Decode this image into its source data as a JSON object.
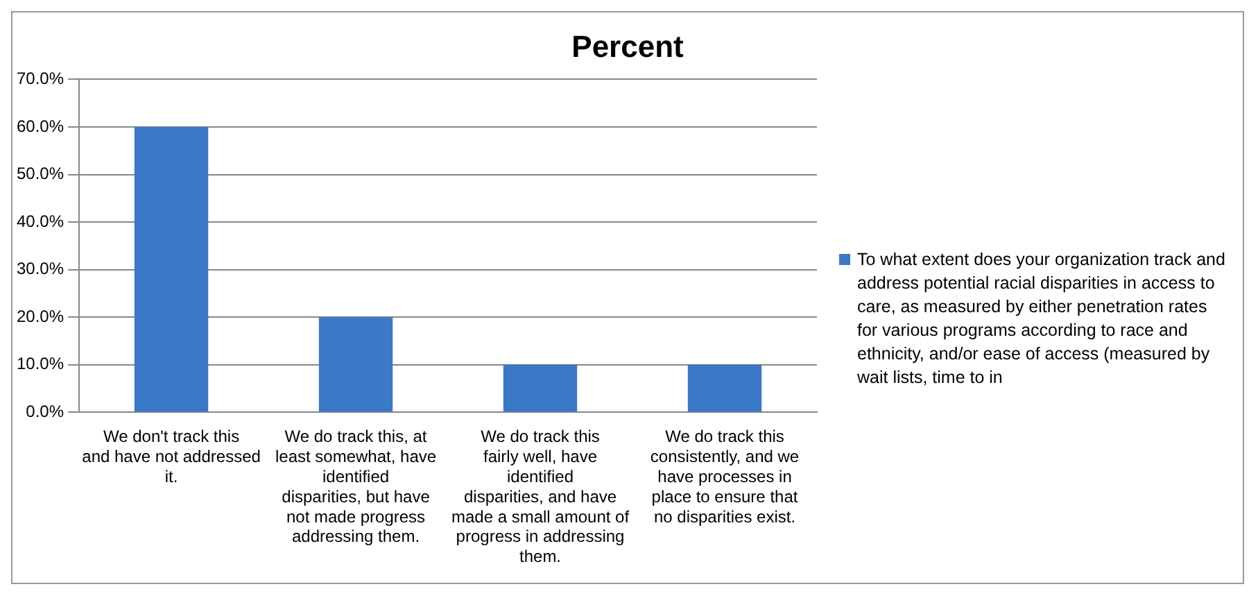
{
  "chart_data": {
    "type": "bar",
    "title": "Percent",
    "categories": [
      "We don't track this and have not addressed it.",
      "We do track this, at least somewhat, have identified disparities, but have not made progress addressing them.",
      "We do track this fairly well, have identified disparities, and have made a small amount of progress in addressing them.",
      "We do track this consistently, and we have processes in place to ensure that no disparities exist."
    ],
    "series": [
      {
        "name": "To what extent does your organization track and address potential racial disparities in access to care, as measured by either penetration rates for various programs according to race and ethnicity, and/or ease of access (measured by wait lists, time to in",
        "color": "#3a78c8",
        "values": [
          60,
          20,
          10,
          10
        ]
      }
    ],
    "ylim": [
      0,
      70
    ],
    "yticks": [
      {
        "value": 0,
        "label": "0.0%"
      },
      {
        "value": 10,
        "label": "10.0%"
      },
      {
        "value": 20,
        "label": "20.0%"
      },
      {
        "value": 30,
        "label": "30.0%"
      },
      {
        "value": 40,
        "label": "40.0%"
      },
      {
        "value": 50,
        "label": "50.0%"
      },
      {
        "value": 60,
        "label": "60.0%"
      },
      {
        "value": 70,
        "label": "70.0%"
      }
    ],
    "grid": "y",
    "legend": "right"
  }
}
